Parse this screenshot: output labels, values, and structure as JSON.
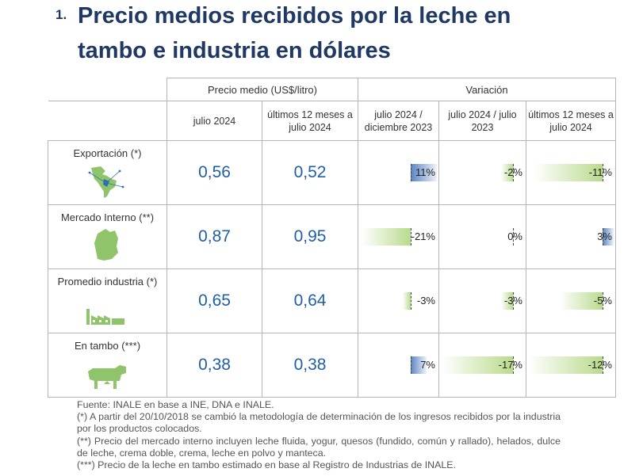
{
  "heading": {
    "number": "1.",
    "title": "Precio medios recibidos por la leche en tambo e industria en dólares"
  },
  "table": {
    "group_headers": [
      "Precio medio (US$/litro)",
      "Variación"
    ],
    "columns": [
      "julio 2024",
      "últimos 12 meses a julio 2024",
      "julio 2024 / diciembre 2023",
      "julio 2024 / julio 2023",
      "últimos 12 meses a julio 2024"
    ],
    "rows": [
      {
        "label": "Exportación (*)",
        "icon": "south-america-map-icon",
        "julio_2024": "0,56",
        "ultimos_12": "0,52",
        "var_dic": "11%",
        "var_jul": "-2%",
        "var_12m": "-11%",
        "var_values": [
          11,
          -2,
          -11
        ]
      },
      {
        "label": "Mercado Interno (**)",
        "icon": "uruguay-map-icon",
        "julio_2024": "0,87",
        "ultimos_12": "0,95",
        "var_dic": "-21%",
        "var_jul": "0%",
        "var_12m": "3%",
        "var_values": [
          -21,
          0,
          3
        ]
      },
      {
        "label": "Promedio industria (*)",
        "icon": "factory-icon",
        "julio_2024": "0,65",
        "ultimos_12": "0,64",
        "var_dic": "-3%",
        "var_jul": "-3%",
        "var_12m": "-5%",
        "var_values": [
          -3,
          -3,
          -5
        ]
      },
      {
        "label": "En tambo (***)",
        "icon": "cow-icon",
        "julio_2024": "0,38",
        "ultimos_12": "0,38",
        "var_dic": "7%",
        "var_jul": "-17%",
        "var_12m": "-12%",
        "var_values": [
          7,
          -17,
          -12
        ]
      }
    ]
  },
  "notes": [
    "Fuente: INALE en base a INE, DNA e INALE.",
    "(*) A partir del 20/10/2018 se cambió la metodología de determinación de los ingresos recibidos por la industria por los productos colocados.",
    "(**) Precio del mercado interno incluyen leche fluida, yogur, quesos (fundido, común y rallado), helados, dulce de leche, crema doble, crema, leche en polvo y manteca.",
    "(***) Precio de la leche en tambo estimado en base al Registro de Industrias de INALE."
  ],
  "colors": {
    "title": "#1f3864",
    "value": "#1f5fa8",
    "bar_negative": "#b9da8d",
    "bar_positive": "#5a84c2"
  }
}
